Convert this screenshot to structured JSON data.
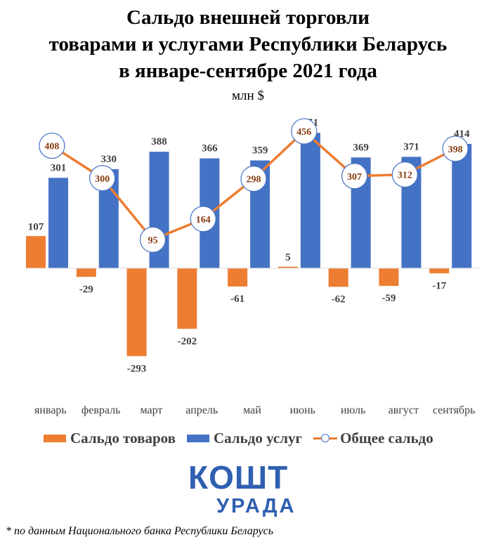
{
  "title_lines": [
    "Сальдо внешней торговли",
    "товарами и услугами Республики Беларусь",
    "в январе-сентябре 2021 года"
  ],
  "unit": "млн $",
  "colors": {
    "goods": "#ed7d31",
    "services": "#4472c4",
    "total_line": "#ed7d31",
    "marker_border": "#4472c4",
    "total_label": "#843c0c",
    "axis": "#d9d9d9"
  },
  "chart_data": {
    "type": "bar",
    "categories": [
      "январь",
      "февраль",
      "март",
      "апрель",
      "май",
      "июнь",
      "июль",
      "август",
      "сентябрь"
    ],
    "series": [
      {
        "name": "Сальдо товаров",
        "type": "bar",
        "values": [
          107,
          -29,
          -293,
          -202,
          -61,
          5,
          -62,
          -59,
          -17
        ]
      },
      {
        "name": "Сальдо услуг",
        "type": "bar",
        "values": [
          301,
          330,
          388,
          366,
          359,
          451,
          369,
          371,
          414
        ]
      },
      {
        "name": "Общее сальдо",
        "type": "line",
        "values": [
          408,
          300,
          95,
          164,
          298,
          456,
          307,
          312,
          398
        ]
      }
    ],
    "ylim": [
      -330,
      470
    ],
    "grid": false,
    "legend": "bottom"
  },
  "legend": {
    "goods": "Сальдо товаров",
    "services": "Сальдо услуг",
    "total": "Общее сальдо"
  },
  "logo": {
    "top": "КОШТ",
    "bottom": "УРАДА"
  },
  "footnote": "* по данным Национального банка Республики Беларусь"
}
